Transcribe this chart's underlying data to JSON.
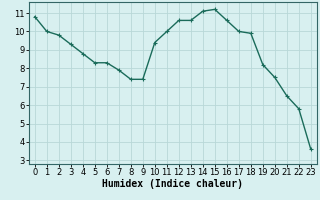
{
  "x": [
    0,
    1,
    2,
    3,
    4,
    5,
    6,
    7,
    8,
    9,
    10,
    11,
    12,
    13,
    14,
    15,
    16,
    17,
    18,
    19,
    20,
    21,
    22,
    23
  ],
  "y": [
    10.8,
    10.0,
    9.8,
    9.3,
    8.8,
    8.3,
    8.3,
    7.9,
    7.4,
    7.4,
    9.4,
    10.0,
    10.6,
    10.6,
    11.1,
    11.2,
    10.6,
    10.0,
    9.9,
    8.2,
    7.5,
    6.5,
    5.8,
    3.6
  ],
  "line_color": "#1a6b5a",
  "marker": "+",
  "markersize": 3,
  "linewidth": 1.0,
  "bg_color": "#d8f0f0",
  "grid_color": "#b8d8d8",
  "xlabel": "Humidex (Indice chaleur)",
  "xlim": [
    -0.5,
    23.5
  ],
  "ylim": [
    2.8,
    11.6
  ],
  "yticks": [
    3,
    4,
    5,
    6,
    7,
    8,
    9,
    10,
    11
  ],
  "xticks": [
    0,
    1,
    2,
    3,
    4,
    5,
    6,
    7,
    8,
    9,
    10,
    11,
    12,
    13,
    14,
    15,
    16,
    17,
    18,
    19,
    20,
    21,
    22,
    23
  ],
  "tick_fontsize": 6,
  "xlabel_fontsize": 7
}
